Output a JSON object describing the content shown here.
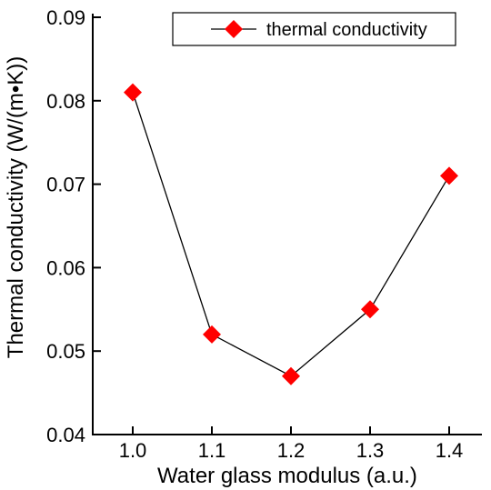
{
  "chart_data": {
    "type": "line",
    "title": "",
    "xlabel": "Water glass modulus (a.u.)",
    "ylabel": "Thermal conductivity (W/(m•K))",
    "x": [
      1.0,
      1.1,
      1.2,
      1.3,
      1.4
    ],
    "x_tick_labels": [
      "1.0",
      "1.1",
      "1.2",
      "1.3",
      "1.4"
    ],
    "xlim": [
      0.9,
      1.45
    ],
    "ylim": [
      0.04,
      0.092
    ],
    "y_tick_labels": [
      "0.04",
      "0.05",
      "0.06",
      "0.07",
      "0.08",
      "0.09"
    ],
    "y_ticks": [
      0.04,
      0.05,
      0.06,
      0.07,
      0.08,
      0.09
    ],
    "series": [
      {
        "name": "thermal conductivity",
        "values": [
          0.081,
          0.052,
          0.047,
          0.055,
          0.071
        ],
        "marker": "diamond",
        "marker_color": "#ff0000",
        "line_color": "#000000"
      }
    ],
    "legend": {
      "position": "top-right"
    },
    "grid": false
  }
}
